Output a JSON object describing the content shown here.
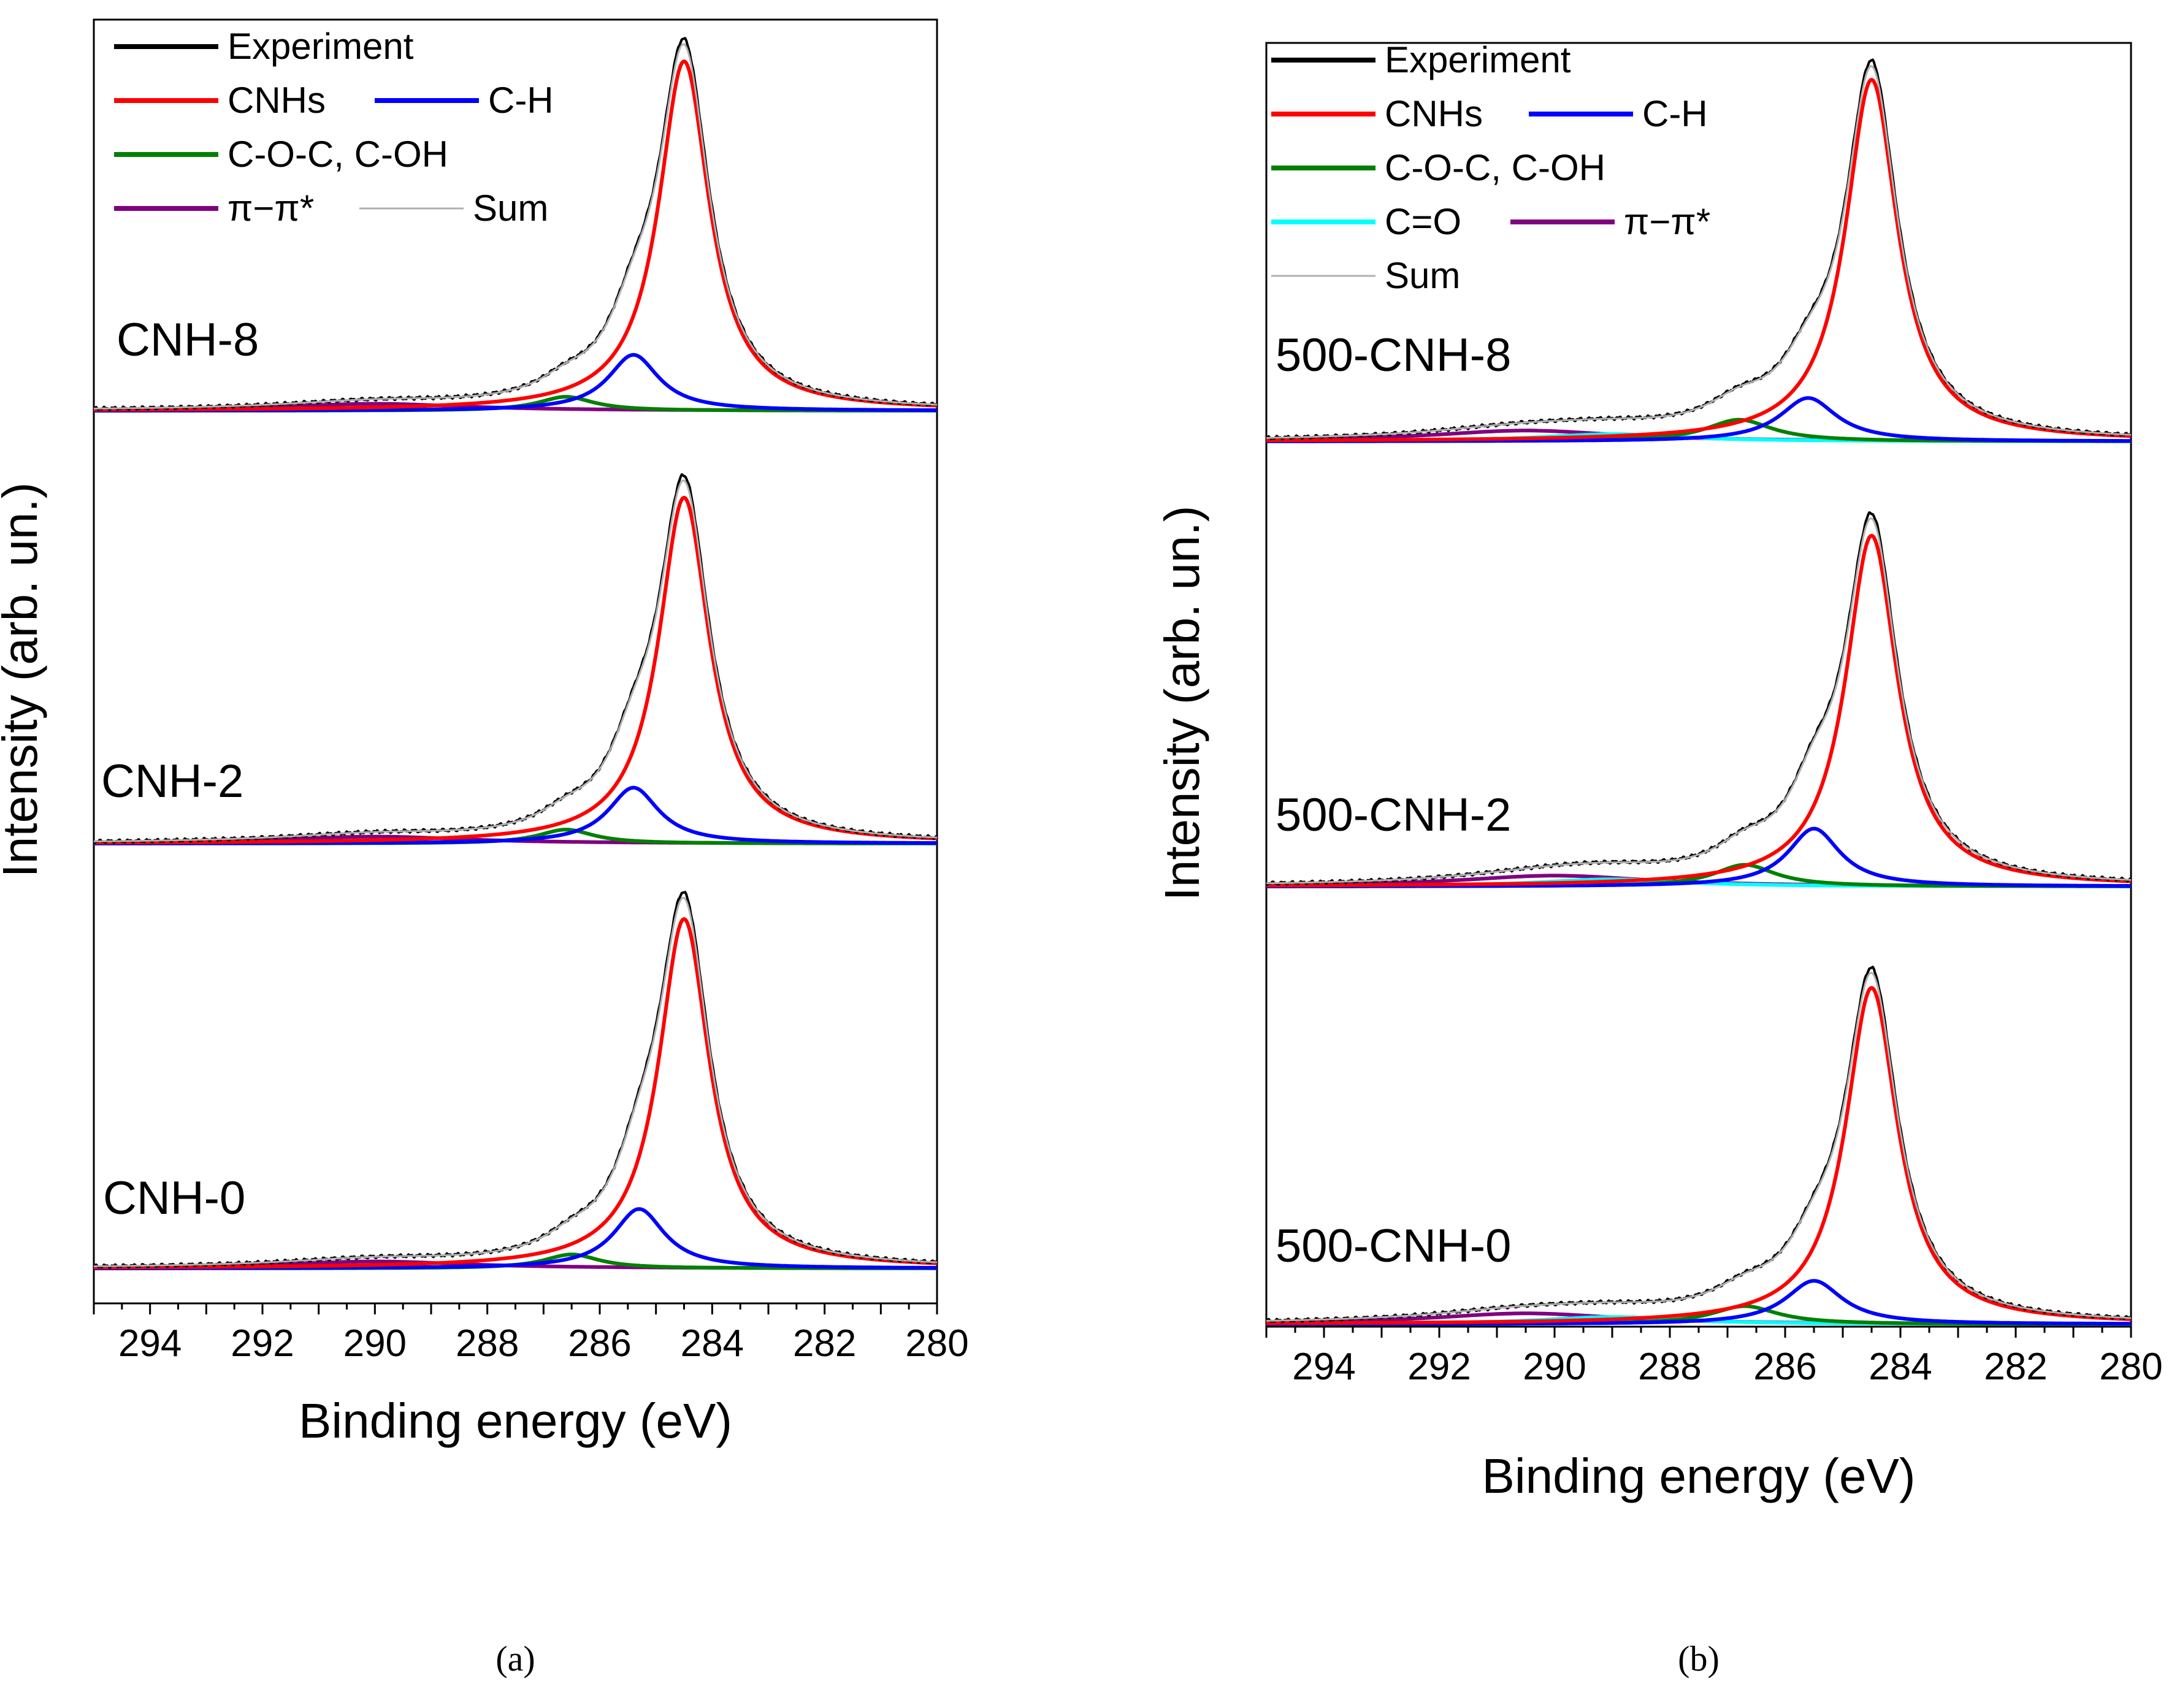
{
  "chart_data": [
    {
      "type": "line",
      "panel_label": "a",
      "caption": "(a)",
      "xlabel": "Binding energy (eV)",
      "ylabel": "Intensity (arb. un.)",
      "xlim": [
        295,
        280
      ],
      "x_reversed": true,
      "x_ticks": [
        "294",
        "292",
        "290",
        "288",
        "286",
        "284",
        "282",
        "280"
      ],
      "legend_placement": "top-left",
      "legend": [
        {
          "key": "exp",
          "label": "Experiment",
          "color": "#000000"
        },
        {
          "key": "cnh",
          "label": "CNHs",
          "color": "#ff0000"
        },
        {
          "key": "ch",
          "label": "C-H",
          "color": "#0000ff"
        },
        {
          "key": "coc",
          "label": "C-O-C, C-OH",
          "color": "#008000"
        },
        {
          "key": "pi",
          "label": "π−π*",
          "color": "#800080"
        },
        {
          "key": "sum",
          "label": "Sum",
          "color": "#b0b0b0"
        }
      ],
      "spectra": [
        {
          "sample": "CNH-8",
          "components": [
            {
              "key": "cnh",
              "center": 284.5,
              "amplitude": 1.0,
              "width": 0.55
            },
            {
              "key": "ch",
              "center": 285.4,
              "amplitude": 0.16,
              "width": 0.55
            },
            {
              "key": "coc",
              "center": 286.6,
              "amplitude": 0.04,
              "width": 0.6
            },
            {
              "key": "pi",
              "center": 290.0,
              "amplitude": 0.02,
              "width": 2.0
            }
          ]
        },
        {
          "sample": "CNH-2",
          "components": [
            {
              "key": "cnh",
              "center": 284.5,
              "amplitude": 0.99,
              "width": 0.55
            },
            {
              "key": "ch",
              "center": 285.4,
              "amplitude": 0.16,
              "width": 0.55
            },
            {
              "key": "coc",
              "center": 286.6,
              "amplitude": 0.04,
              "width": 0.6
            },
            {
              "key": "pi",
              "center": 290.0,
              "amplitude": 0.02,
              "width": 2.0
            }
          ]
        },
        {
          "sample": "CNH-0",
          "components": [
            {
              "key": "cnh",
              "center": 284.5,
              "amplitude": 1.0,
              "width": 0.55
            },
            {
              "key": "ch",
              "center": 285.3,
              "amplitude": 0.17,
              "width": 0.55
            },
            {
              "key": "coc",
              "center": 286.5,
              "amplitude": 0.04,
              "width": 0.6
            },
            {
              "key": "pi",
              "center": 290.0,
              "amplitude": 0.02,
              "width": 2.0
            }
          ]
        }
      ]
    },
    {
      "type": "line",
      "panel_label": "b",
      "caption": "(b)",
      "xlabel": "Binding energy (eV)",
      "ylabel": "Intensity (arb. un.)",
      "xlim": [
        295,
        280
      ],
      "x_reversed": true,
      "x_ticks": [
        "294",
        "292",
        "290",
        "288",
        "286",
        "284",
        "282",
        "280"
      ],
      "legend_placement": "top-left",
      "legend": [
        {
          "key": "exp",
          "label": "Experiment",
          "color": "#000000"
        },
        {
          "key": "cnh",
          "label": "CNHs",
          "color": "#ff0000"
        },
        {
          "key": "ch",
          "label": "C-H",
          "color": "#0000ff"
        },
        {
          "key": "coc",
          "label": "C-O-C, C-OH",
          "color": "#008000"
        },
        {
          "key": "co",
          "label": "C=O",
          "color": "#00ffff"
        },
        {
          "key": "pi",
          "label": "π−π*",
          "color": "#800080"
        },
        {
          "key": "sum",
          "label": "Sum",
          "color": "#b0b0b0"
        }
      ],
      "spectra": [
        {
          "sample": "500-CNH-8",
          "components": [
            {
              "key": "cnh",
              "center": 284.5,
              "amplitude": 1.0,
              "width": 0.55
            },
            {
              "key": "ch",
              "center": 285.6,
              "amplitude": 0.12,
              "width": 0.6
            },
            {
              "key": "coc",
              "center": 286.8,
              "amplitude": 0.06,
              "width": 0.7
            },
            {
              "key": "co",
              "center": 289.0,
              "amplitude": 0.02,
              "width": 1.5
            },
            {
              "key": "pi",
              "center": 290.5,
              "amplitude": 0.03,
              "width": 2.0
            }
          ]
        },
        {
          "sample": "500-CNH-2",
          "components": [
            {
              "key": "cnh",
              "center": 284.5,
              "amplitude": 0.97,
              "width": 0.55
            },
            {
              "key": "ch",
              "center": 285.5,
              "amplitude": 0.16,
              "width": 0.55
            },
            {
              "key": "coc",
              "center": 286.7,
              "amplitude": 0.06,
              "width": 0.65
            },
            {
              "key": "co",
              "center": 289.0,
              "amplitude": 0.02,
              "width": 1.5
            },
            {
              "key": "pi",
              "center": 290.0,
              "amplitude": 0.03,
              "width": 2.0
            }
          ]
        },
        {
          "sample": "500-CNH-0",
          "components": [
            {
              "key": "cnh",
              "center": 284.5,
              "amplitude": 0.93,
              "width": 0.55
            },
            {
              "key": "ch",
              "center": 285.5,
              "amplitude": 0.12,
              "width": 0.6
            },
            {
              "key": "coc",
              "center": 286.7,
              "amplitude": 0.05,
              "width": 0.7
            },
            {
              "key": "co",
              "center": 289.0,
              "amplitude": 0.02,
              "width": 1.5
            },
            {
              "key": "pi",
              "center": 290.5,
              "amplitude": 0.03,
              "width": 2.0
            }
          ]
        }
      ]
    }
  ]
}
